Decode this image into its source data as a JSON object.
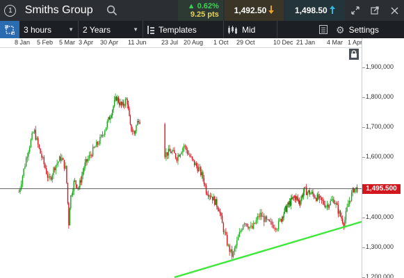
{
  "header": {
    "info_icon": "info-icon",
    "title": "Smiths Group",
    "search_icon": "search-icon",
    "change": {
      "pct": "▲ 0.62%",
      "pts": "9.25 pts"
    },
    "sell": {
      "price": "1,492.50",
      "arrow_icon": "arrow-down-icon"
    },
    "buy": {
      "price": "1,498.50",
      "arrow_icon": "arrow-up-icon"
    },
    "window_icons": [
      "expand-icon",
      "popout-icon",
      "close-icon"
    ]
  },
  "toolbar": {
    "interval": "3 hours",
    "range": "2 Years",
    "templates": "Templates",
    "price_mode": "Mid",
    "settings": "Settings"
  },
  "chart_data": {
    "type": "candlestick",
    "instrument": "Smiths Group",
    "xlabel": "",
    "ylabel": "",
    "x_ticks": [
      "8 Jan",
      "5 Feb",
      "5 Mar",
      "3 Apr",
      "30 Apr",
      "11 Jun",
      "23 Jul",
      "20 Aug",
      "1 Oct",
      "29 Oct",
      "10 Dec",
      "21 Jan",
      "4 Mar",
      "1 Apr"
    ],
    "y_ticks": [
      1200000,
      1300000,
      1400000,
      1500000,
      1600000,
      1700000,
      1800000,
      1900000
    ],
    "y_tick_labels": [
      "1,200,000",
      "1,300,000",
      "1,400,000",
      "1,500,000",
      "1,600,000",
      "1,700,000",
      "1,800,000",
      "1,900,000"
    ],
    "ylim": [
      1180000,
      1925000
    ],
    "last_price": 1495500,
    "last_price_label": "1,495.500",
    "up_color": "#1aa31a",
    "down_color": "#d3171f",
    "trendline_color": "#3ee83a",
    "trendline": {
      "from": {
        "x": "29 Jul",
        "y": 1200000
      },
      "to": {
        "x": "15 Apr",
        "y": 1390000
      }
    },
    "path": [
      [
        "3 Jan",
        1485000
      ],
      [
        "14 Jan",
        1620000
      ],
      [
        "22 Jan",
        1690000
      ],
      [
        "28 Jan",
        1630000
      ],
      [
        "5 Feb",
        1565000
      ],
      [
        "10 Feb",
        1520000
      ],
      [
        "17 Feb",
        1570000
      ],
      [
        "25 Feb",
        1600000
      ],
      [
        "3 Mar",
        1560000
      ],
      [
        "7 Mar",
        1380000
      ],
      [
        "9 Mar",
        1460000
      ],
      [
        "15 Mar",
        1520000
      ],
      [
        "22 Mar",
        1500000
      ],
      [
        "30 Mar",
        1570000
      ],
      [
        "10 Apr",
        1620000
      ],
      [
        "20 Apr",
        1660000
      ],
      [
        "1 May",
        1730000
      ],
      [
        "12 May",
        1800000
      ],
      [
        "20 May",
        1770000
      ],
      [
        "28 May",
        1795000
      ],
      [
        "2 Jun",
        1700000
      ],
      [
        "8 Jun",
        1680000
      ],
      [
        "14 Jun",
        1730000
      ],
      [
        "16 Jul",
        1610000
      ],
      [
        "25 Jul",
        1620000
      ],
      [
        "1 Aug",
        1600000
      ],
      [
        "10 Aug",
        1640000
      ],
      [
        "20 Aug",
        1590000
      ],
      [
        "30 Aug",
        1560000
      ],
      [
        "5 Sep",
        1530000
      ],
      [
        "9 Sep",
        1490000
      ],
      [
        "17 Sep",
        1470000
      ],
      [
        "27 Sep",
        1430000
      ],
      [
        "2 Oct",
        1370000
      ],
      [
        "9 Oct",
        1300000
      ],
      [
        "14 Oct",
        1270000
      ],
      [
        "21 Oct",
        1330000
      ],
      [
        "28 Oct",
        1390000
      ],
      [
        "6 Nov",
        1360000
      ],
      [
        "15 Nov",
        1410000
      ],
      [
        "25 Nov",
        1380000
      ],
      [
        "5 Dec",
        1370000
      ],
      [
        "12 Dec",
        1410000
      ],
      [
        "22 Dec",
        1440000
      ],
      [
        "3 Jan",
        1470000
      ],
      [
        "12 Jan",
        1450000
      ],
      [
        "20 Jan",
        1490000
      ],
      [
        "30 Jan",
        1480000
      ],
      [
        "10 Feb",
        1460000
      ],
      [
        "20 Feb",
        1440000
      ],
      [
        "2 Mar",
        1460000
      ],
      [
        "10 Mar",
        1410000
      ],
      [
        "16 Mar",
        1380000
      ],
      [
        "22 Mar",
        1450000
      ],
      [
        "29 Mar",
        1495000
      ],
      [
        "3 Apr",
        1495500
      ]
    ]
  }
}
